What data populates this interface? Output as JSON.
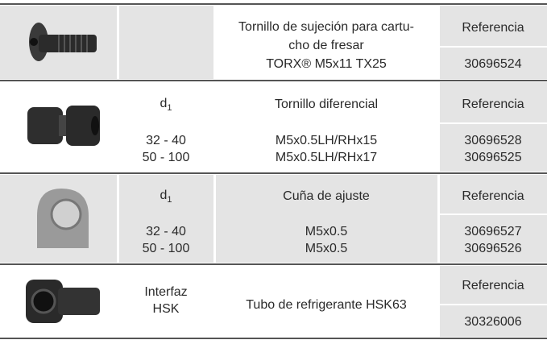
{
  "rows": [
    {
      "d1": null,
      "description": [
        "Tornillo de sujeción para cartu-",
        "cho de fresar",
        "TORX® M5x11 TX25"
      ],
      "ref_header": "Referencia",
      "refs": [
        "30696524"
      ]
    },
    {
      "d1": {
        "main": "d",
        "sub": "1"
      },
      "sizes": [
        "32 - 40",
        "50 - 100"
      ],
      "description": [
        "Tornillo diferencial"
      ],
      "specs": [
        "M5x0.5LH/RHx15",
        "M5x0.5LH/RHx17"
      ],
      "ref_header": "Referencia",
      "refs": [
        "30696528",
        "30696525"
      ]
    },
    {
      "d1": {
        "main": "d",
        "sub": "1"
      },
      "sizes": [
        "32 - 40",
        "50 - 100"
      ],
      "description": [
        "Cuña de ajuste"
      ],
      "specs": [
        "M5x0.5",
        "M5x0.5"
      ],
      "ref_header": "Referencia",
      "refs": [
        "30696527",
        "30696526"
      ]
    },
    {
      "interface": [
        "Interfaz",
        "HSK"
      ],
      "description": [
        "Tubo de refrigerante HSK63"
      ],
      "ref_header": "Referencia",
      "refs": [
        "30326006"
      ]
    }
  ]
}
